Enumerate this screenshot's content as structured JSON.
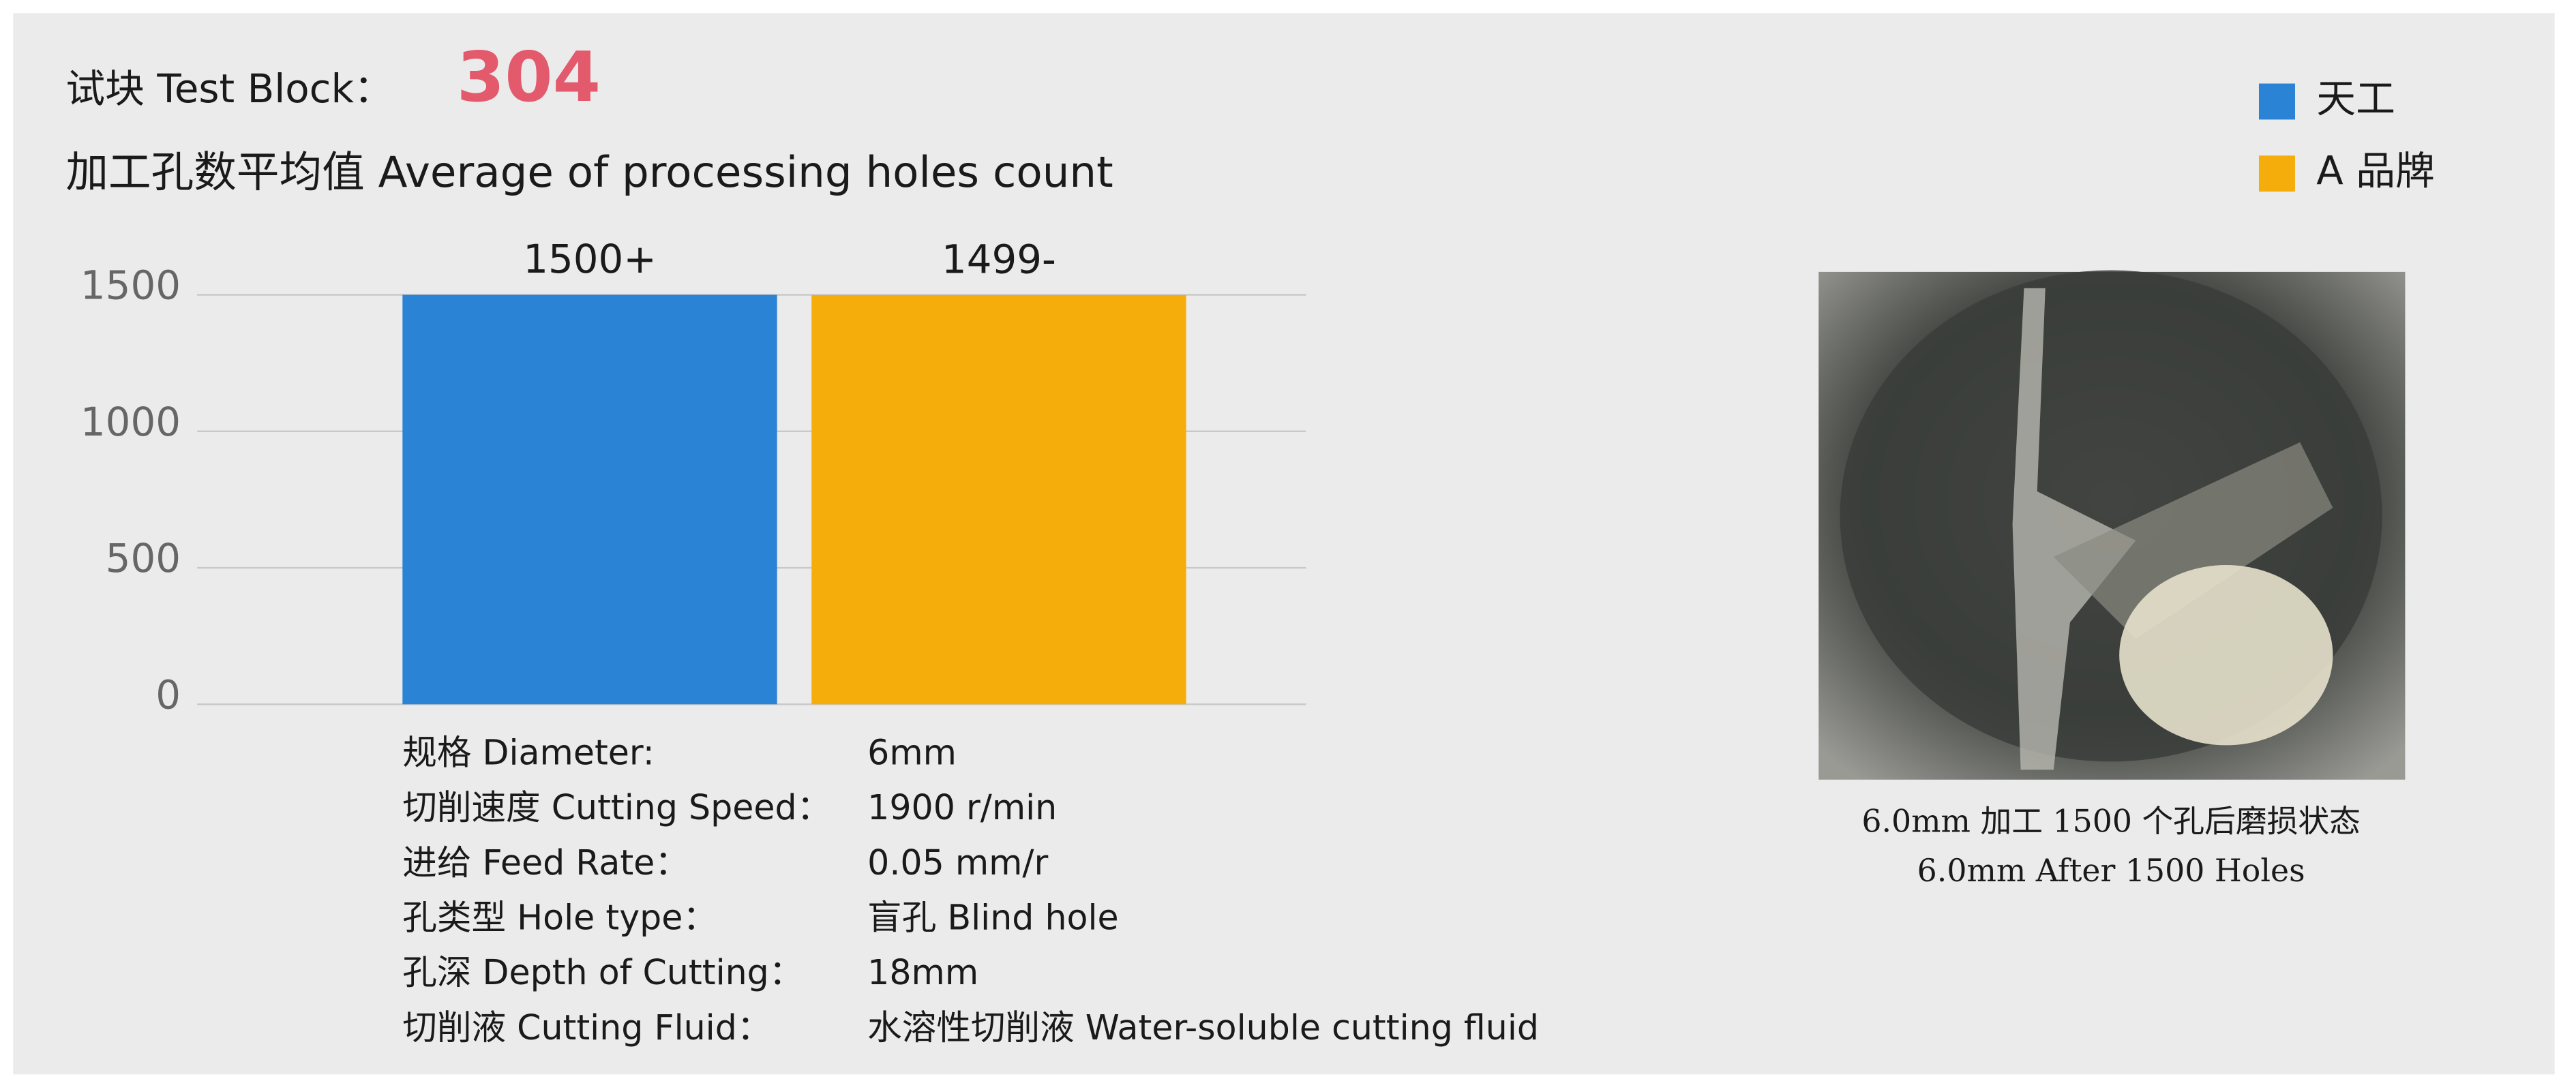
{
  "header": {
    "title": "试块 Test Block：",
    "block": "304"
  },
  "chart_data": {
    "type": "bar",
    "subtitle": "加工孔数平均值 Average of processing holes count",
    "categories": [
      null
    ],
    "series": [
      {
        "name": "天工",
        "color": "#2a83d4",
        "values": [
          1500
        ],
        "value_labels": [
          "1500+"
        ]
      },
      {
        "name": "A 品牌",
        "color": "#f5ad0c",
        "values": [
          1499
        ],
        "value_labels": [
          "1499-"
        ]
      }
    ],
    "ylim": [
      0,
      1500
    ],
    "yticks": [
      0,
      500,
      1000,
      1500
    ],
    "grid": true,
    "legend": "top-right"
  },
  "specs": [
    {
      "label": "规格 Diameter:",
      "value": "6mm"
    },
    {
      "label": "切削速度 Cutting Speed：",
      "value": "1900 r/min"
    },
    {
      "label": "进给 Feed Rate：",
      "value": "0.05 mm/r"
    },
    {
      "label": "孔类型 Hole type：",
      "value": "盲孔 Blind hole"
    },
    {
      "label": "孔深 Depth of Cutting：",
      "value": "18mm"
    },
    {
      "label": "切削液 Cutting Fluid：",
      "value": "水溶性切削液 Water-soluble cutting fluid"
    }
  ],
  "photo": {
    "caption": [
      "6.0mm 加工 1500 个孔后磨损状态",
      "6.0mm After 1500 Holes"
    ]
  }
}
